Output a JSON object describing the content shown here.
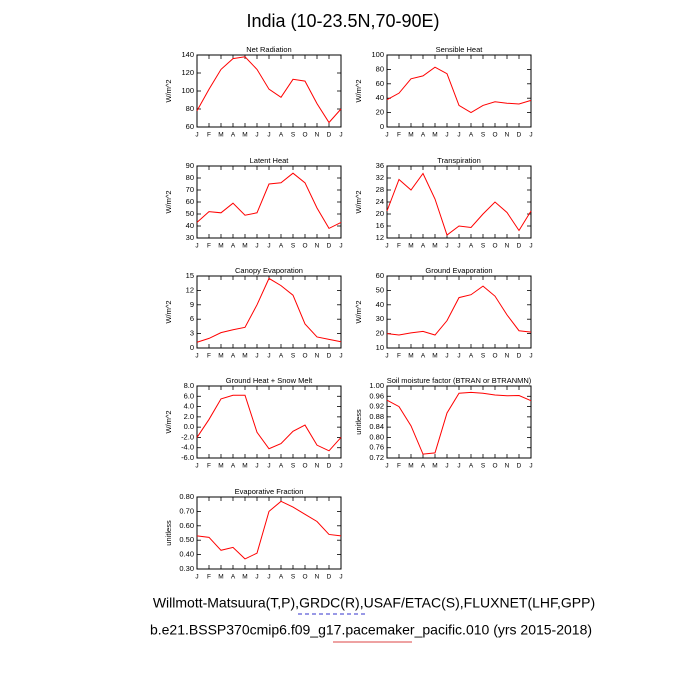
{
  "title": "India (10-23.5N,70-90E)",
  "footer": [
    "Willmott-Matsuura(T,P),GRDC(R),USAF/ETAC(S),FLUXNET(LHF,GPP)",
    "b.e21.BSSP370cmip6.f09_g17.pacemaker_pacific.010 (yrs 2015-2018)"
  ],
  "chart_data": [
    {
      "type": "line",
      "title": "Net Radiation",
      "y_label": "W/m^2",
      "color": "#ff0000",
      "categories": [
        "J",
        "F",
        "M",
        "A",
        "M",
        "J",
        "J",
        "A",
        "S",
        "O",
        "N",
        "D",
        "J"
      ],
      "values": [
        78,
        102,
        124,
        136,
        138,
        124,
        102,
        93,
        113,
        111,
        86,
        65,
        80
      ],
      "ylim": [
        60,
        140
      ],
      "yticks": [
        60,
        80,
        100,
        120,
        140
      ]
    },
    {
      "type": "line",
      "title": "Sensible Heat",
      "y_label": "W/m^2",
      "color": "#ff0000",
      "categories": [
        "J",
        "F",
        "M",
        "A",
        "M",
        "J",
        "J",
        "A",
        "S",
        "O",
        "N",
        "D",
        "J"
      ],
      "values": [
        38,
        47,
        67,
        71,
        83,
        74,
        30,
        20,
        30,
        35,
        33,
        32,
        37
      ],
      "ylim": [
        0,
        100
      ],
      "yticks": [
        0,
        20,
        40,
        60,
        80,
        100
      ]
    },
    {
      "type": "line",
      "title": "Latent Heat",
      "y_label": "W/m^2",
      "color": "#ff0000",
      "categories": [
        "J",
        "F",
        "M",
        "A",
        "M",
        "J",
        "J",
        "A",
        "S",
        "O",
        "N",
        "D",
        "J"
      ],
      "values": [
        43,
        52,
        51,
        59,
        49,
        51,
        75,
        76,
        84,
        76,
        55,
        38,
        43
      ],
      "ylim": [
        30,
        90
      ],
      "yticks": [
        30,
        40,
        50,
        60,
        70,
        80,
        90
      ]
    },
    {
      "type": "line",
      "title": "Transpiration",
      "y_label": "W/m^2",
      "color": "#ff0000",
      "categories": [
        "J",
        "F",
        "M",
        "A",
        "M",
        "J",
        "J",
        "A",
        "S",
        "O",
        "N",
        "D",
        "J"
      ],
      "values": [
        21,
        31.5,
        28,
        33.5,
        25,
        13,
        16,
        15.5,
        20,
        24,
        20.5,
        14.5,
        21
      ],
      "ylim": [
        12,
        36
      ],
      "yticks": [
        12,
        16,
        20,
        24,
        28,
        32,
        36
      ]
    },
    {
      "type": "line",
      "title": "Canopy Evaporation",
      "y_label": "W/m^2",
      "color": "#ff0000",
      "categories": [
        "J",
        "F",
        "M",
        "A",
        "M",
        "J",
        "J",
        "A",
        "S",
        "O",
        "N",
        "D",
        "J"
      ],
      "values": [
        1.2,
        2,
        3.2,
        3.8,
        4.3,
        9,
        14.5,
        13,
        11,
        5,
        2.3,
        1.8,
        1.3
      ],
      "ylim": [
        0,
        15
      ],
      "yticks": [
        0,
        3,
        6,
        9,
        12,
        15
      ]
    },
    {
      "type": "line",
      "title": "Ground Evaporation",
      "y_label": "W/m^2",
      "color": "#ff0000",
      "categories": [
        "J",
        "F",
        "M",
        "A",
        "M",
        "J",
        "J",
        "A",
        "S",
        "O",
        "N",
        "D",
        "J"
      ],
      "values": [
        20,
        19,
        20.5,
        21.5,
        19,
        29,
        45,
        47,
        53,
        46,
        33,
        22,
        21
      ],
      "ylim": [
        10,
        60
      ],
      "yticks": [
        10,
        20,
        30,
        40,
        50,
        60
      ]
    },
    {
      "type": "line",
      "title": "Ground Heat + Snow Melt",
      "y_label": "W/m^2",
      "color": "#ff0000",
      "categories": [
        "J",
        "F",
        "M",
        "A",
        "M",
        "J",
        "J",
        "A",
        "S",
        "O",
        "N",
        "D",
        "J"
      ],
      "values": [
        -2,
        1.5,
        5.5,
        6.2,
        6.2,
        -1,
        -4.2,
        -3.2,
        -0.8,
        0.4,
        -3.5,
        -4.6,
        -2
      ],
      "ylim": [
        -6,
        8
      ],
      "yticks": [
        {
          "value": -6,
          "label": "-6.0"
        },
        {
          "value": -4,
          "label": "-4.0"
        },
        {
          "value": -2,
          "label": "-2.0"
        },
        {
          "value": 0,
          "label": "0.0"
        },
        {
          "value": 2,
          "label": "2.0"
        },
        {
          "value": 4,
          "label": "4.0"
        },
        {
          "value": 6,
          "label": "6.0"
        },
        {
          "value": 8,
          "label": "8.0"
        }
      ]
    },
    {
      "type": "line",
      "title": "Soil moisture factor (BTRAN or BTRANMN)",
      "y_label": "unitless",
      "color": "#ff0000",
      "categories": [
        "J",
        "F",
        "M",
        "A",
        "M",
        "J",
        "J",
        "A",
        "S",
        "O",
        "N",
        "D",
        "J"
      ],
      "values": [
        0.945,
        0.92,
        0.845,
        0.735,
        0.74,
        0.895,
        0.972,
        0.975,
        0.972,
        0.965,
        0.962,
        0.963,
        0.943
      ],
      "ylim": [
        0.72,
        1.0
      ],
      "yticks": [
        0.72,
        0.76,
        {
          "value": 0.8,
          "label": "0.80"
        },
        0.84,
        0.88,
        0.92,
        0.96,
        {
          "value": 1.0,
          "label": "1.00"
        }
      ]
    },
    {
      "type": "line",
      "title": "Evaporative Fraction",
      "y_label": "unitless",
      "color": "#ff0000",
      "categories": [
        "J",
        "F",
        "M",
        "A",
        "M",
        "J",
        "J",
        "A",
        "S",
        "O",
        "N",
        "D",
        "J"
      ],
      "values": [
        0.53,
        0.52,
        0.43,
        0.45,
        0.37,
        0.41,
        0.7,
        0.77,
        0.73,
        0.68,
        0.63,
        0.54,
        0.53
      ],
      "ylim": [
        0.3,
        0.8
      ],
      "yticks": [
        {
          "value": 0.3,
          "label": "0.30"
        },
        {
          "value": 0.4,
          "label": "0.40"
        },
        {
          "value": 0.5,
          "label": "0.50"
        },
        {
          "value": 0.6,
          "label": "0.60"
        },
        {
          "value": 0.7,
          "label": "0.70"
        },
        {
          "value": 0.8,
          "label": "0.80"
        }
      ]
    }
  ]
}
